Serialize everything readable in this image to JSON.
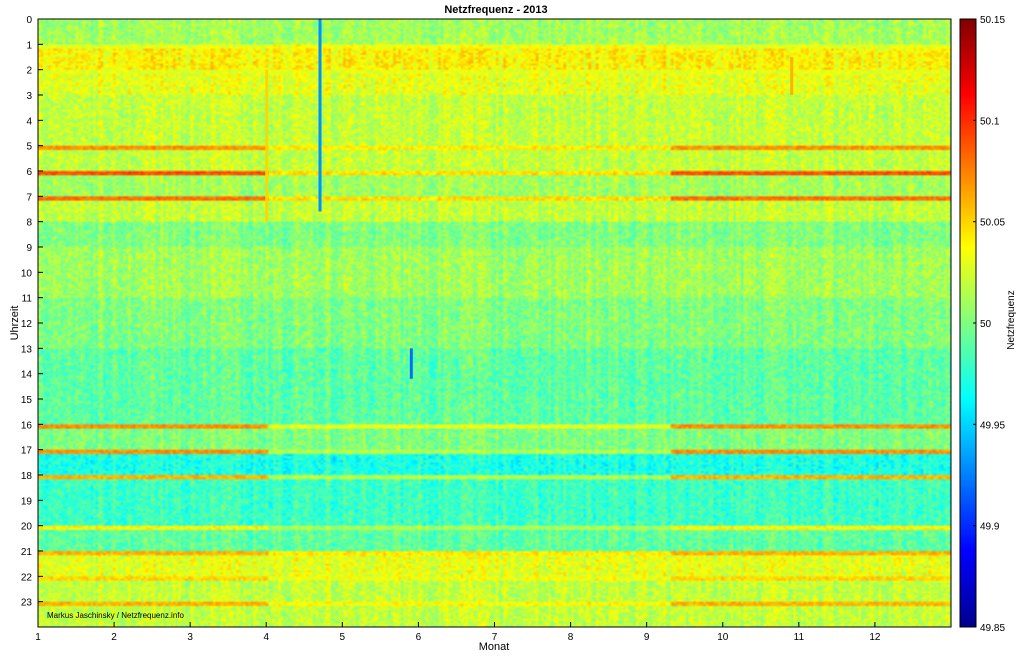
{
  "chart_data": {
    "type": "heatmap",
    "title": "Netzfrequenz - 2013",
    "xlabel": "Monat",
    "ylabel": "Uhrzeit",
    "colorbar_label": "Netzfrequenz",
    "credit": "Markus Jaschinsky / Netzfrequenz.info",
    "x_ticks": [
      "1",
      "2",
      "3",
      "4",
      "5",
      "6",
      "7",
      "8",
      "9",
      "10",
      "11",
      "12"
    ],
    "y_ticks": [
      "0",
      "1",
      "2",
      "3",
      "4",
      "5",
      "6",
      "7",
      "8",
      "9",
      "10",
      "11",
      "12",
      "13",
      "14",
      "15",
      "16",
      "17",
      "18",
      "19",
      "20",
      "21",
      "22",
      "23"
    ],
    "xlim": [
      1,
      13
    ],
    "ylim": [
      0,
      24
    ],
    "y_reversed": true,
    "colorbar_ticks": [
      "50.15",
      "50.1",
      "50.05",
      "50",
      "49.95",
      "49.9",
      "49.85"
    ],
    "clim": [
      49.85,
      50.15
    ],
    "colormap": "jet",
    "colors": [
      "#00008f",
      "#0000ff",
      "#00ffff",
      "#ffff00",
      "#ff0000",
      "#800000"
    ],
    "grid": false,
    "hour_profile": [
      {
        "hour": 0,
        "value": 50.01
      },
      {
        "hour": 1,
        "value": 50.04
      },
      {
        "hour": 2,
        "value": 50.03
      },
      {
        "hour": 3,
        "value": 50.02
      },
      {
        "hour": 4,
        "value": 50.02
      },
      {
        "hour": 5,
        "value": 50.02
      },
      {
        "hour": 6,
        "value": 50.01
      },
      {
        "hour": 7,
        "value": 50.02
      },
      {
        "hour": 8,
        "value": 50.0
      },
      {
        "hour": 9,
        "value": 50.01
      },
      {
        "hour": 10,
        "value": 50.01
      },
      {
        "hour": 11,
        "value": 50.0
      },
      {
        "hour": 12,
        "value": 50.0
      },
      {
        "hour": 13,
        "value": 49.99
      },
      {
        "hour": 14,
        "value": 49.99
      },
      {
        "hour": 15,
        "value": 49.99
      },
      {
        "hour": 16,
        "value": 50.0
      },
      {
        "hour": 17,
        "value": 49.97
      },
      {
        "hour": 18,
        "value": 49.98
      },
      {
        "hour": 19,
        "value": 49.98
      },
      {
        "hour": 20,
        "value": 49.99
      },
      {
        "hour": 21,
        "value": 50.03
      },
      {
        "hour": 22,
        "value": 50.02
      },
      {
        "hour": 23,
        "value": 50.02
      }
    ],
    "hour_boundary_steps": [
      {
        "hour": 1,
        "high": 50.03,
        "low": 49.95
      },
      {
        "hour": 2,
        "high": 50.03,
        "low": 49.97
      },
      {
        "hour": 5,
        "high": 50.07,
        "low": 49.97
      },
      {
        "hour": 6,
        "high": 50.09,
        "low": 49.97
      },
      {
        "hour": 7,
        "high": 50.08,
        "low": 49.96
      },
      {
        "hour": 16,
        "high": 50.07,
        "low": 49.95
      },
      {
        "hour": 17,
        "high": 50.07,
        "low": 49.95
      },
      {
        "hour": 18,
        "high": 50.06,
        "low": 49.95
      },
      {
        "hour": 20,
        "high": 50.04,
        "low": 49.92
      },
      {
        "hour": 21,
        "high": 50.06,
        "low": 49.93
      },
      {
        "hour": 22,
        "high": 50.05,
        "low": 49.93
      },
      {
        "hour": 23,
        "high": 50.06,
        "low": 49.94
      }
    ],
    "anomalies": [
      {
        "month": 4.7,
        "hour_start": 0,
        "hour_end": 7.6,
        "value": 49.93
      },
      {
        "month": 5.9,
        "hour_start": 13.0,
        "hour_end": 14.2,
        "value": 49.92
      },
      {
        "month": 4.0,
        "hour_start": 2.0,
        "hour_end": 8.0,
        "value": 50.05
      },
      {
        "month": 10.9,
        "hour_start": 1.5,
        "hour_end": 3.0,
        "value": 50.06
      }
    ]
  }
}
